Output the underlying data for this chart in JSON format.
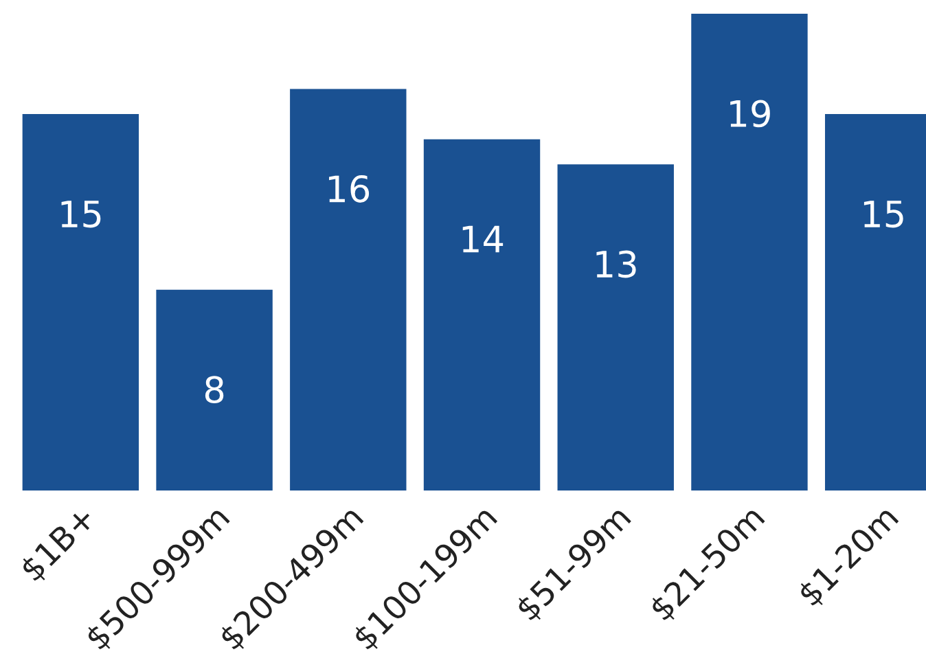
{
  "chart_data": {
    "type": "bar",
    "categories": [
      "$1B+",
      "$500-999m",
      "$200-499m",
      "$100-199m",
      "$51-99m",
      "$21-50m",
      "$1-20m"
    ],
    "values": [
      15,
      8,
      16,
      14,
      13,
      19,
      15
    ],
    "color": "#1a5192",
    "data_labels": true,
    "grid": false,
    "legend": false
  }
}
